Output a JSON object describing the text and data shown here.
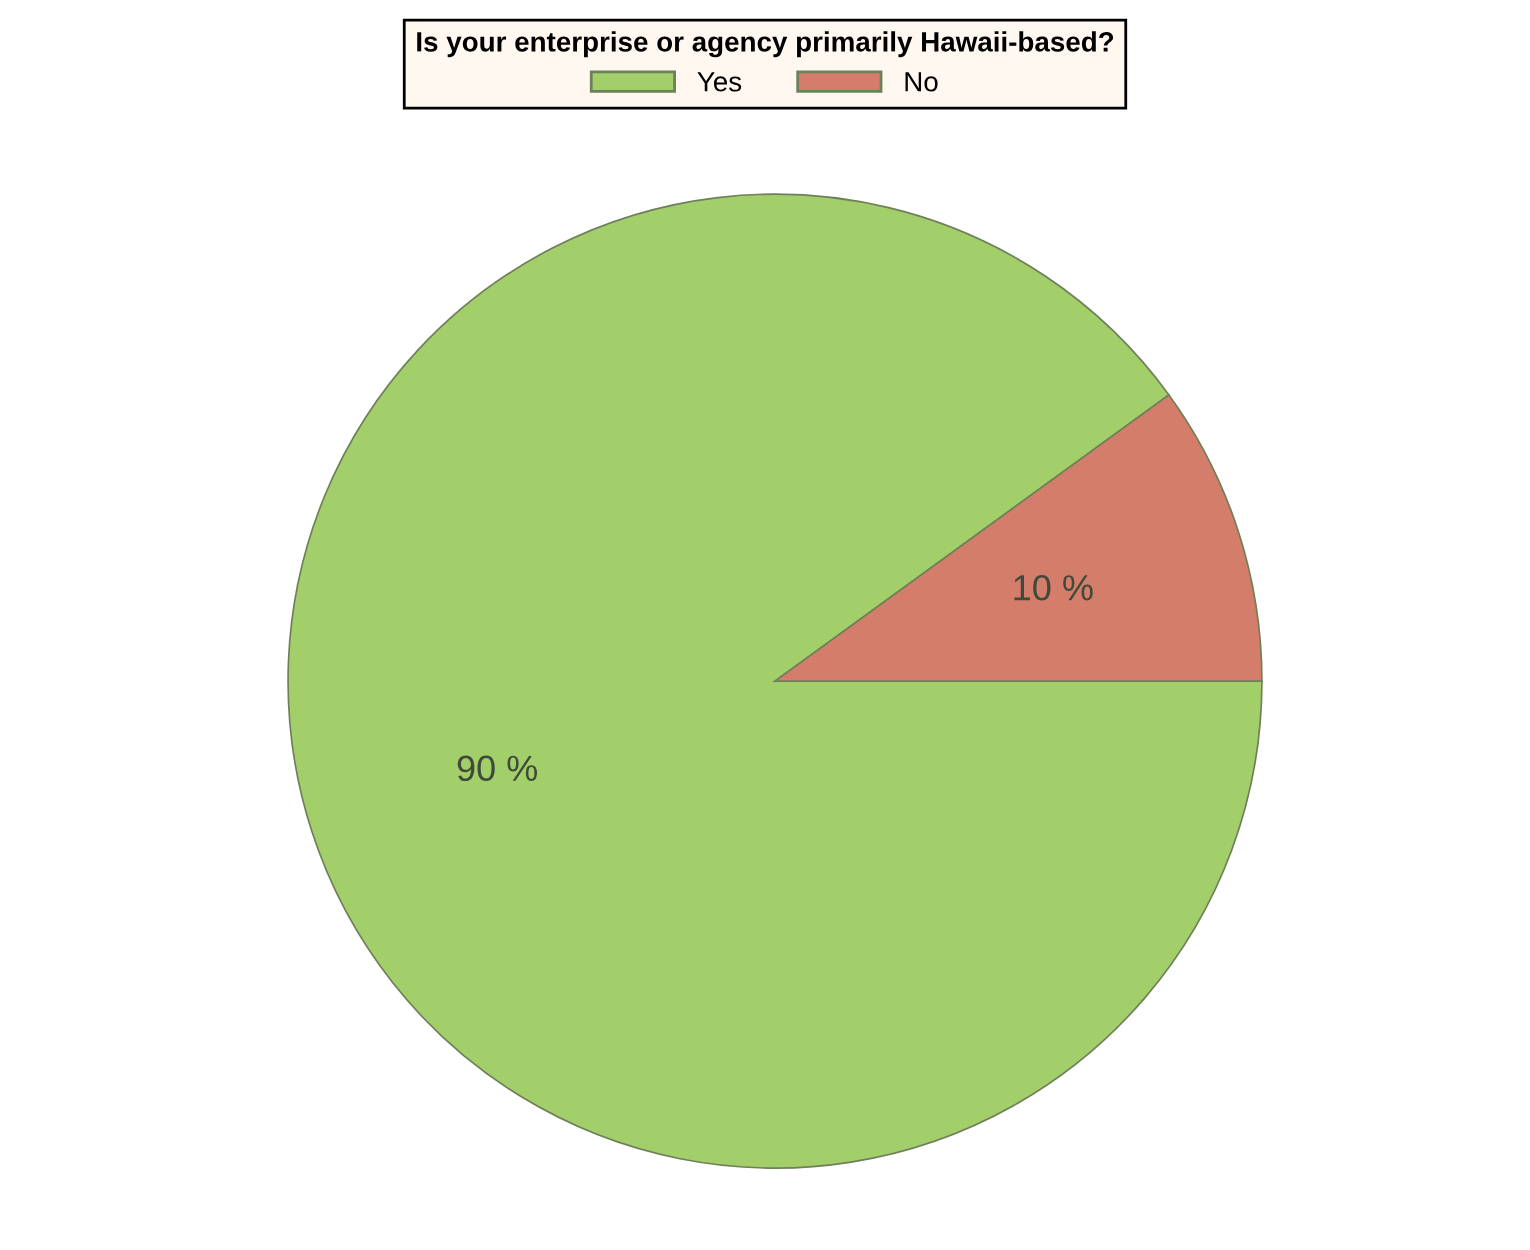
{
  "chart_data": {
    "type": "pie",
    "legend_title": "Is your enterprise or agency primarily Hawaii-based?",
    "categories": [
      "Yes",
      "No"
    ],
    "values": [
      90,
      10
    ],
    "colors": [
      "#a3cf6a",
      "#d47d6a"
    ],
    "value_labels": [
      "90 %",
      "10 %"
    ],
    "legend": "top"
  }
}
